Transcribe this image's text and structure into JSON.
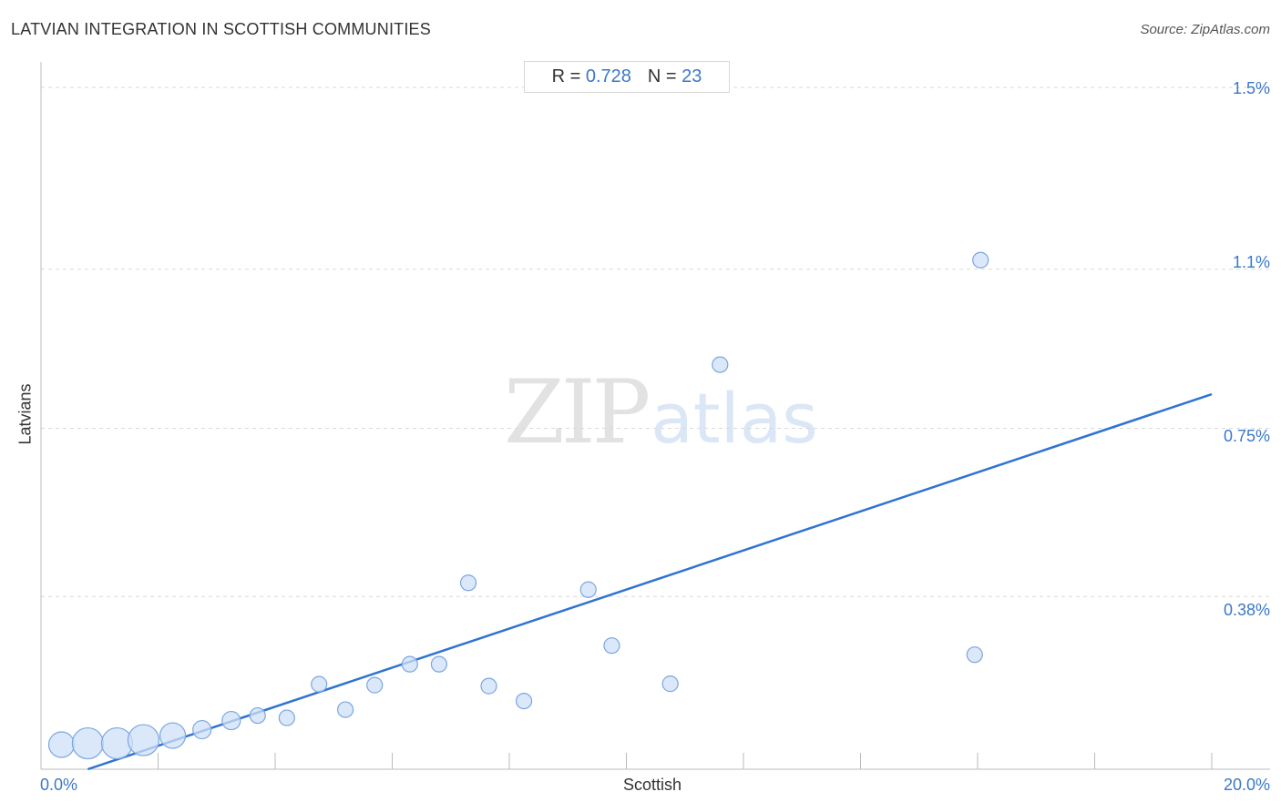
{
  "header": {
    "title": "LATVIAN INTEGRATION IN SCOTTISH COMMUNITIES",
    "source": "Source: ZipAtlas.com"
  },
  "stats": {
    "r_label": "R =",
    "r_value": "0.728",
    "n_label": "N =",
    "n_value": "23"
  },
  "watermark": {
    "zip": "ZIP",
    "atlas": "atlas"
  },
  "colors": {
    "accent": "#3a78c9",
    "point_fill": "#cfe0f7",
    "point_stroke": "#7aa6e0",
    "trend": "#2f74d0",
    "grid": "#d9d9d9",
    "text": "#333333"
  },
  "chart_data": {
    "type": "scatter",
    "title": "LATVIAN INTEGRATION IN SCOTTISH COMMUNITIES",
    "xlabel": "Scottish",
    "ylabel": "Latvians",
    "xlim": [
      0,
      20
    ],
    "ylim": [
      0,
      1.55
    ],
    "x_tick_labels": [
      "0.0%",
      "20.0%"
    ],
    "y_ticks": [
      {
        "value": 0.38,
        "label": "0.38%"
      },
      {
        "value": 0.75,
        "label": "0.75%"
      },
      {
        "value": 1.1,
        "label": "1.1%"
      },
      {
        "value": 1.5,
        "label": "1.5%"
      }
    ],
    "x_minor_ticks": [
      2,
      4,
      6,
      8,
      10,
      12,
      14,
      16,
      18,
      20
    ],
    "grid": true,
    "points": [
      {
        "x": 0.35,
        "y": 0.054,
        "size": 3
      },
      {
        "x": 0.8,
        "y": 0.057,
        "size": 4
      },
      {
        "x": 1.3,
        "y": 0.057,
        "size": 4
      },
      {
        "x": 1.75,
        "y": 0.064,
        "size": 4
      },
      {
        "x": 2.25,
        "y": 0.074,
        "size": 3
      },
      {
        "x": 2.75,
        "y": 0.087,
        "size": 2
      },
      {
        "x": 3.25,
        "y": 0.107,
        "size": 2
      },
      {
        "x": 3.7,
        "y": 0.118,
        "size": 1
      },
      {
        "x": 4.2,
        "y": 0.113,
        "size": 1
      },
      {
        "x": 4.75,
        "y": 0.187,
        "size": 1
      },
      {
        "x": 5.2,
        "y": 0.131,
        "size": 1
      },
      {
        "x": 5.7,
        "y": 0.185,
        "size": 1
      },
      {
        "x": 6.3,
        "y": 0.231,
        "size": 1
      },
      {
        "x": 6.8,
        "y": 0.231,
        "size": 1
      },
      {
        "x": 7.3,
        "y": 0.41,
        "size": 1
      },
      {
        "x": 7.65,
        "y": 0.183,
        "size": 1
      },
      {
        "x": 8.25,
        "y": 0.15,
        "size": 1
      },
      {
        "x": 9.35,
        "y": 0.395,
        "size": 1
      },
      {
        "x": 9.75,
        "y": 0.272,
        "size": 1
      },
      {
        "x": 10.75,
        "y": 0.188,
        "size": 1
      },
      {
        "x": 11.6,
        "y": 0.89,
        "size": 1
      },
      {
        "x": 15.95,
        "y": 0.252,
        "size": 1
      },
      {
        "x": 16.05,
        "y": 1.12,
        "size": 1
      }
    ],
    "trendline": {
      "x": [
        0.8,
        20
      ],
      "y": [
        0.0,
        0.825
      ]
    }
  }
}
